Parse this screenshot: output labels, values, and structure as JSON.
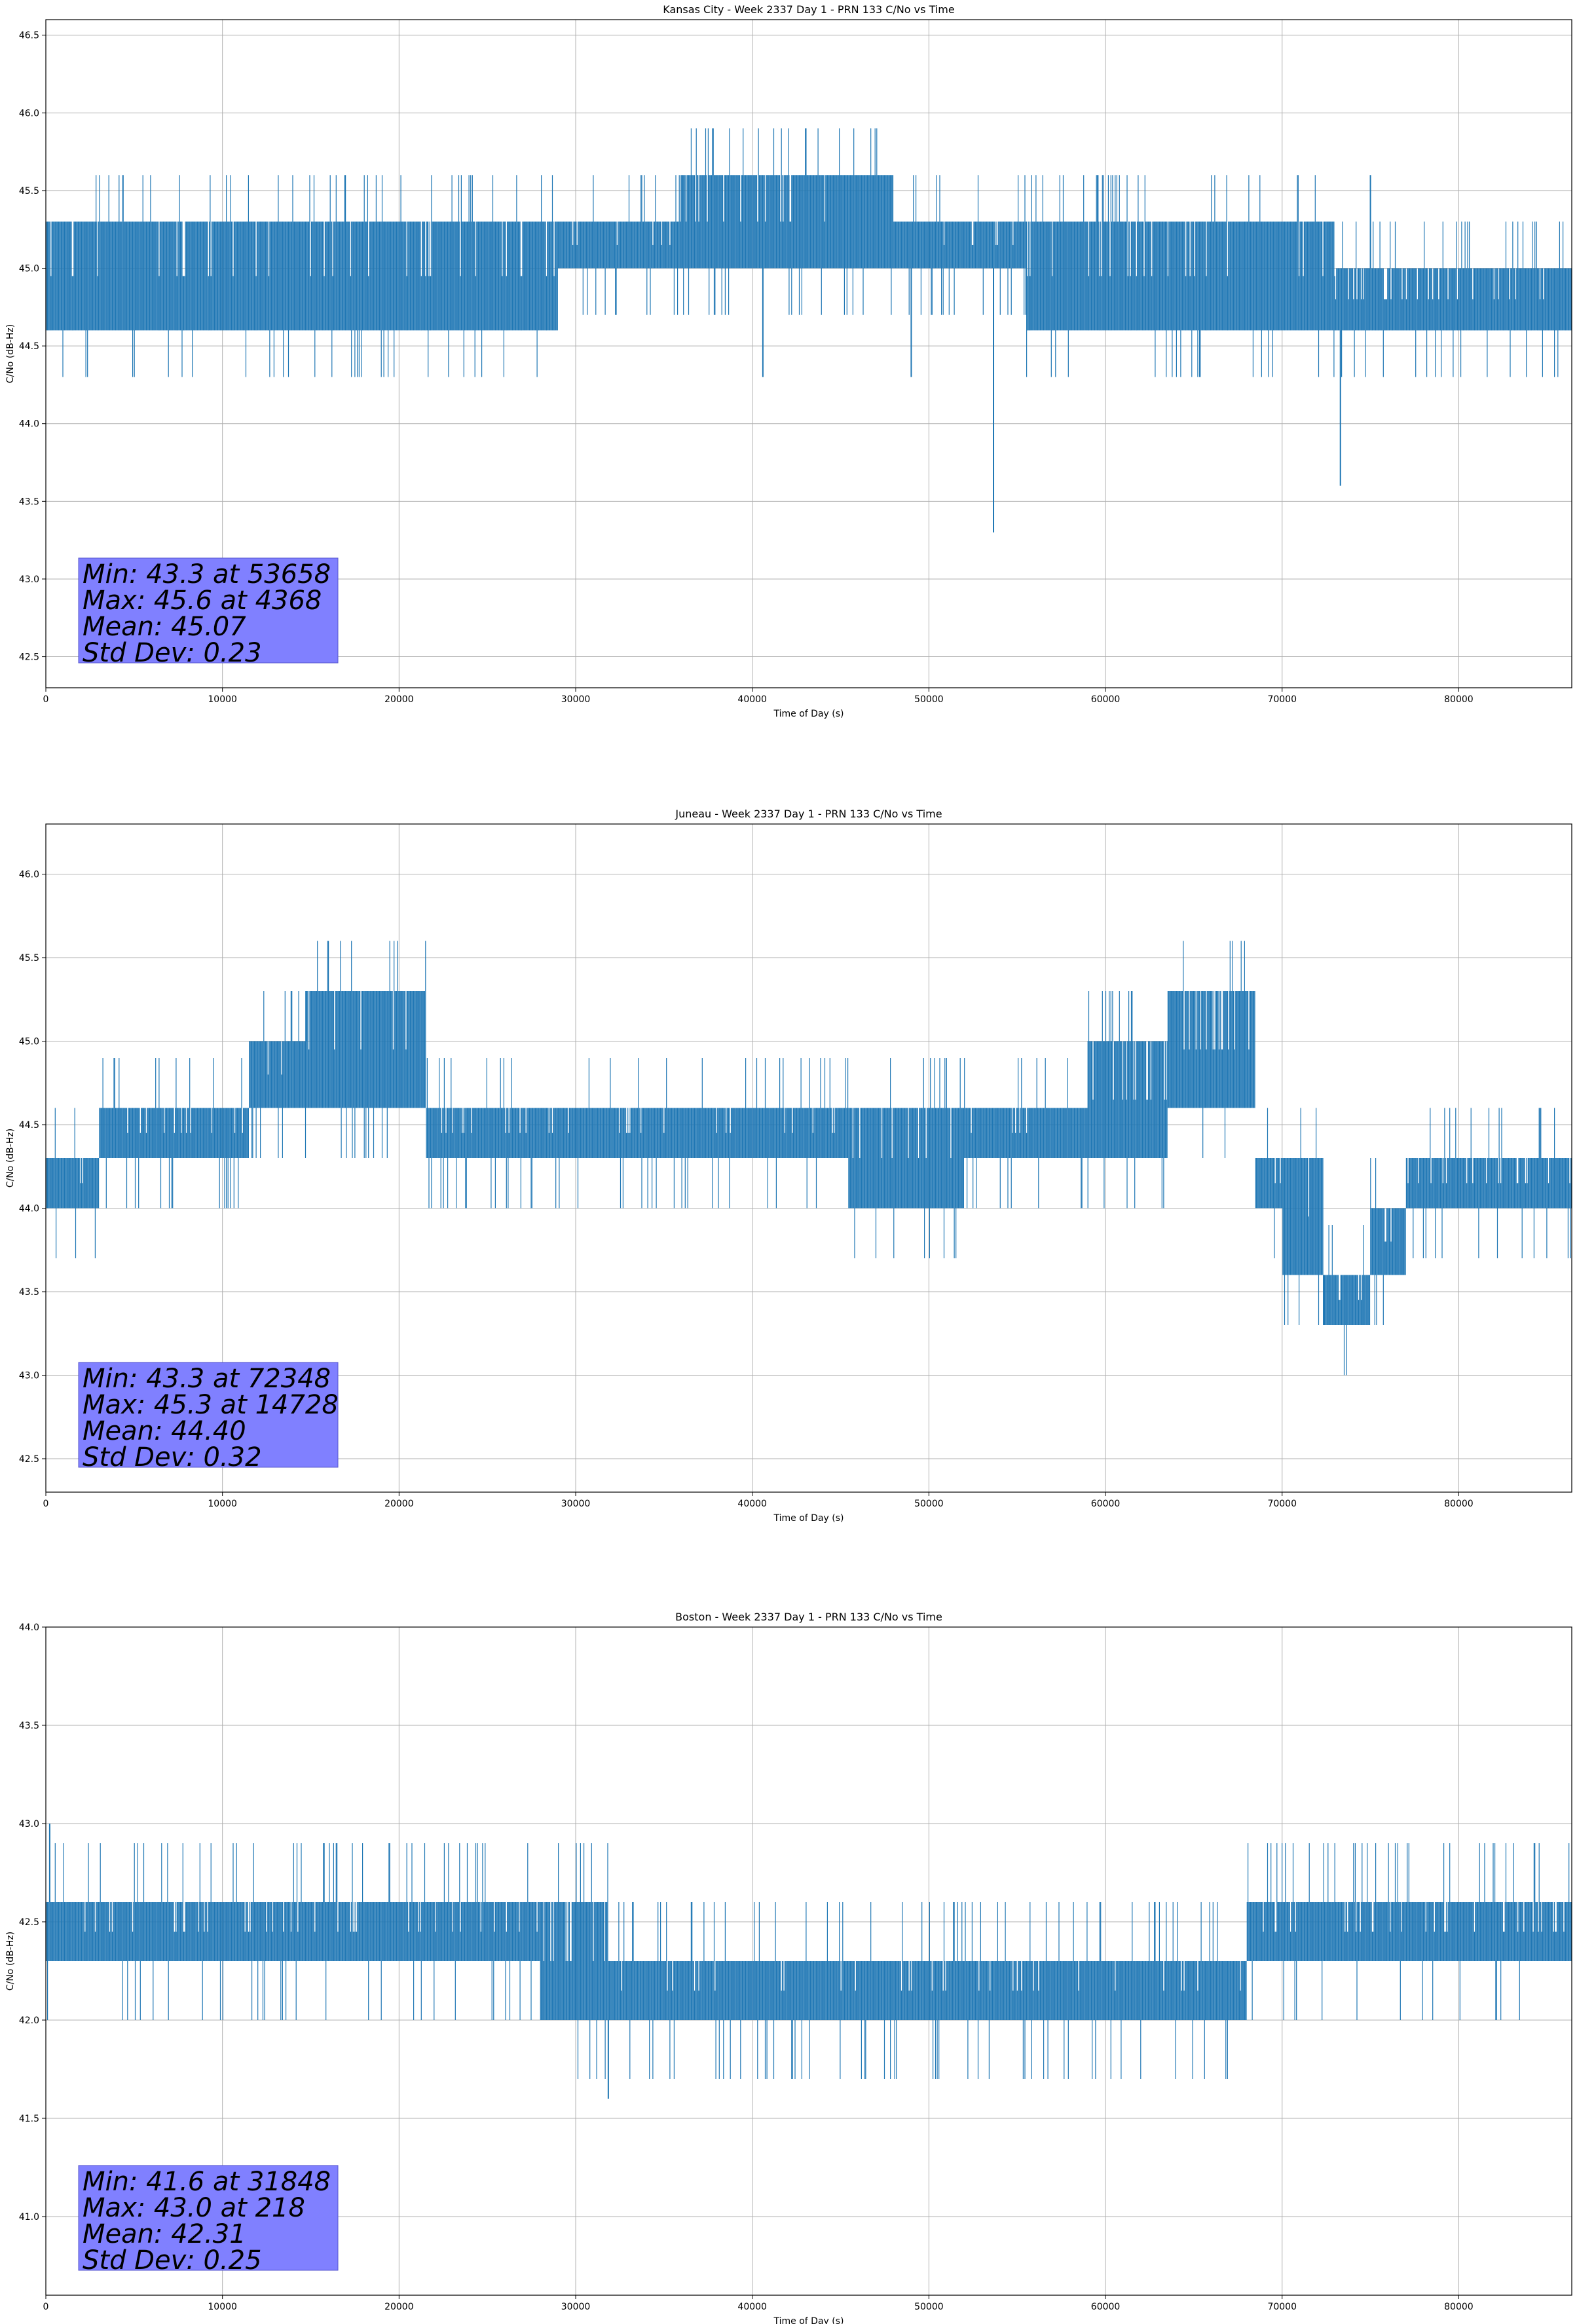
{
  "chart_data": [
    {
      "type": "line",
      "title": "Kansas City - Week 2337 Day 1 - PRN 133 C/No vs Time",
      "xlabel": "Time of Day (s)",
      "ylabel": "C/No (dB-Hz)",
      "xlim": [
        0,
        86400
      ],
      "ylim": [
        42.3,
        46.6
      ],
      "xticks": [
        0,
        10000,
        20000,
        30000,
        40000,
        50000,
        60000,
        70000,
        80000
      ],
      "yticks": [
        42.5,
        43.0,
        43.5,
        44.0,
        44.5,
        45.0,
        45.5,
        46.0,
        46.5
      ],
      "grid": true,
      "color": "#1f77b4",
      "series": [
        {
          "x": [
            0,
            4368,
            15000,
            29000,
            36000,
            38000,
            40500,
            45000,
            48000,
            53658,
            55500,
            60000,
            68000,
            73000,
            73500,
            77000,
            80000,
            86400
          ],
          "band_low": [
            44.6,
            44.6,
            44.6,
            45.0,
            45.0,
            45.0,
            45.0,
            45.0,
            45.0,
            45.0,
            44.6,
            44.6,
            44.6,
            44.6,
            44.6,
            44.6,
            44.6,
            44.6
          ],
          "band_high": [
            45.3,
            45.3,
            45.3,
            45.3,
            45.6,
            45.6,
            45.6,
            45.6,
            45.3,
            45.3,
            45.3,
            45.3,
            45.3,
            45.0,
            45.0,
            45.0,
            45.0,
            45.0
          ],
          "spikes": [
            {
              "x": 53658,
              "y": 43.3
            },
            {
              "x": 73300,
              "y": 43.6
            },
            {
              "x": 49000,
              "y": 44.3
            },
            {
              "x": 40600,
              "y": 44.3
            },
            {
              "x": 4368,
              "y": 45.6
            },
            {
              "x": 75000,
              "y": 45.6
            }
          ]
        }
      ],
      "stats": {
        "min": "Min: 43.3 at 53658",
        "max": "Max: 45.6 at 4368",
        "mean": "Mean: 45.07",
        "std": "Std Dev: 0.23"
      }
    },
    {
      "type": "line",
      "title": "Juneau - Week 2337 Day 1 - PRN 133 C/No vs Time",
      "xlabel": "Time of Day (s)",
      "ylabel": "C/No (dB-Hz)",
      "xlim": [
        0,
        86400
      ],
      "ylim": [
        42.3,
        46.3
      ],
      "xticks": [
        0,
        10000,
        20000,
        30000,
        40000,
        50000,
        60000,
        70000,
        80000
      ],
      "yticks": [
        42.5,
        43.0,
        43.5,
        44.0,
        44.5,
        45.0,
        45.5,
        46.0
      ],
      "grid": true,
      "color": "#1f77b4",
      "series": [
        {
          "x": [
            0,
            3000,
            6500,
            11500,
            14728,
            21500,
            45500,
            52000,
            59000,
            63500,
            68500,
            70000,
            72348,
            75000,
            77000,
            86400
          ],
          "band_low": [
            44.0,
            44.3,
            44.3,
            44.6,
            44.6,
            44.3,
            44.0,
            44.3,
            44.3,
            44.6,
            44.0,
            43.6,
            43.3,
            43.6,
            44.0,
            44.0
          ],
          "band_high": [
            44.3,
            44.6,
            44.6,
            45.0,
            45.3,
            44.6,
            44.6,
            44.6,
            45.0,
            45.3,
            44.3,
            44.3,
            43.6,
            44.0,
            44.3,
            44.3
          ],
          "spikes": [
            {
              "x": 72348,
              "y": 43.3
            },
            {
              "x": 14728,
              "y": 45.3
            }
          ]
        }
      ],
      "stats": {
        "min": "Min: 43.3 at 72348",
        "max": "Max: 45.3 at 14728",
        "mean": "Mean: 44.40",
        "std": "Std Dev: 0.32"
      }
    },
    {
      "type": "line",
      "title": "Boston - Week 2337 Day 1 - PRN 133 C/No vs Time",
      "xlabel": "Time of Day (s)",
      "ylabel": "C/No (dB-Hz)",
      "xlim": [
        0,
        86400
      ],
      "ylim": [
        40.6,
        44.0
      ],
      "xticks": [
        0,
        10000,
        20000,
        30000,
        40000,
        50000,
        60000,
        70000,
        80000
      ],
      "yticks": [
        41.0,
        41.5,
        42.0,
        42.5,
        43.0,
        43.5,
        44.0
      ],
      "grid": true,
      "color": "#1f77b4",
      "series": [
        {
          "x": [
            0,
            218,
            25000,
            28000,
            31848,
            45000,
            50000,
            60000,
            64000,
            68000,
            70000,
            86400
          ],
          "band_low": [
            42.3,
            42.3,
            42.3,
            42.0,
            42.0,
            42.0,
            42.0,
            42.0,
            42.0,
            42.3,
            42.3,
            42.3
          ],
          "band_high": [
            42.6,
            42.6,
            42.6,
            42.6,
            42.3,
            42.3,
            42.3,
            42.3,
            42.3,
            42.6,
            42.6,
            42.6
          ],
          "spikes": [
            {
              "x": 218,
              "y": 43.0
            },
            {
              "x": 31848,
              "y": 41.6
            }
          ]
        }
      ],
      "stats": {
        "min": "Min: 41.6 at 31848",
        "max": "Max: 43.0 at 218",
        "mean": "Mean: 42.31",
        "std": "Std Dev: 0.25"
      }
    }
  ]
}
